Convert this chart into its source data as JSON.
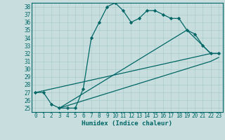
{
  "title": "",
  "xlabel": "Humidex (Indice chaleur)",
  "bg_color": "#c8dede",
  "grid_color": "#aacccc",
  "line_color": "#006666",
  "xlim": [
    -0.5,
    23.5
  ],
  "ylim": [
    24.5,
    38.5
  ],
  "yticks": [
    25,
    26,
    27,
    28,
    29,
    30,
    31,
    32,
    33,
    34,
    35,
    36,
    37,
    38
  ],
  "xticks": [
    0,
    1,
    2,
    3,
    4,
    5,
    6,
    7,
    8,
    9,
    10,
    11,
    12,
    13,
    14,
    15,
    16,
    17,
    18,
    19,
    20,
    21,
    22,
    23
  ],
  "series": [
    {
      "x": [
        0,
        1,
        2,
        3,
        4,
        5,
        6,
        7,
        8,
        9,
        10,
        11,
        12,
        13,
        14,
        15,
        16,
        17,
        18,
        19,
        20,
        21,
        22,
        23
      ],
      "y": [
        27,
        27,
        25.5,
        25,
        25,
        25,
        27.5,
        34,
        36,
        38,
        38.5,
        37.5,
        36,
        36.5,
        37.5,
        37.5,
        37,
        36.5,
        36.5,
        35,
        34.5,
        33,
        32,
        32
      ],
      "marker": "D",
      "markersize": 2.2,
      "linewidth": 0.9,
      "has_marker": true
    },
    {
      "x": [
        0,
        22,
        23
      ],
      "y": [
        27,
        32,
        32
      ],
      "has_marker": false,
      "linewidth": 0.9
    },
    {
      "x": [
        3,
        22,
        23
      ],
      "y": [
        25,
        31,
        31.5
      ],
      "has_marker": false,
      "linewidth": 0.9
    },
    {
      "x": [
        3,
        19,
        22,
        23
      ],
      "y": [
        25,
        35,
        32,
        32
      ],
      "has_marker": false,
      "linewidth": 0.9
    }
  ],
  "tick_fontsize": 5.5,
  "xlabel_fontsize": 6.5
}
